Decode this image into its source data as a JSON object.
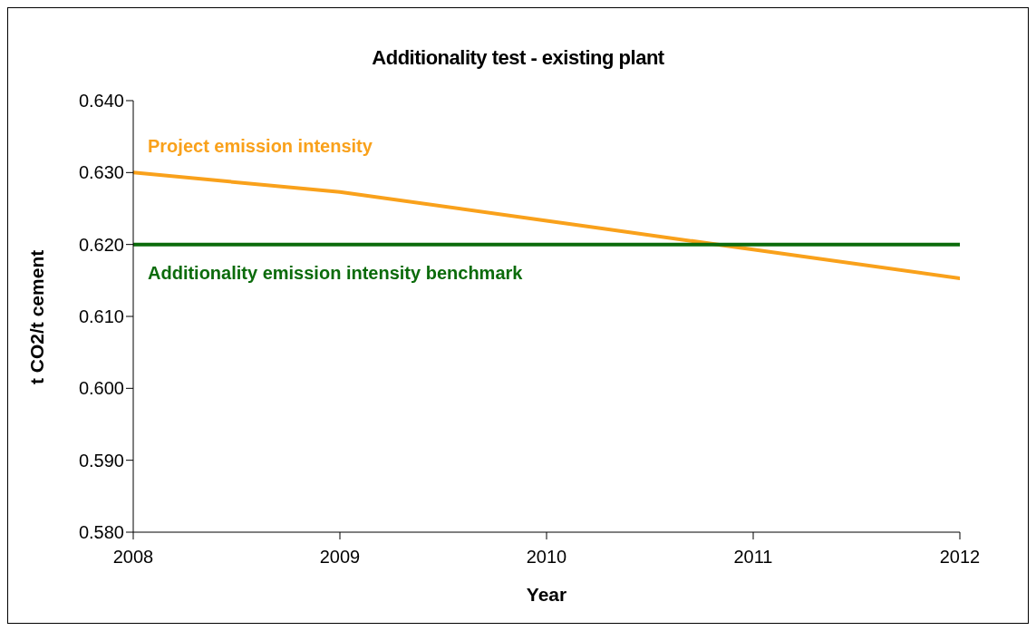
{
  "chart_data": {
    "type": "line",
    "title": "Additionality test - existing plant",
    "xlabel": "Year",
    "ylabel": "t CO2/t cement",
    "x": [
      2008,
      2009,
      2010,
      2011,
      2012
    ],
    "series": [
      {
        "name": "Project emission intensity",
        "color": "#f9a11b",
        "values": [
          0.63,
          0.6273,
          0.6233,
          0.6193,
          0.6153
        ]
      },
      {
        "name": "Additionality emission intensity benchmark",
        "color": "#0b6b0b",
        "values": [
          0.62,
          0.62,
          0.62,
          0.62,
          0.62
        ]
      }
    ],
    "xlim": [
      2008,
      2012
    ],
    "xticks": [
      2008,
      2009,
      2010,
      2011,
      2012
    ],
    "ylim": [
      0.58,
      0.64
    ],
    "yticks": [
      {
        "value": 0.58,
        "label": "0.580"
      },
      {
        "value": 0.59,
        "label": "0.590"
      },
      {
        "value": 0.6,
        "label": "0.600"
      },
      {
        "value": 0.61,
        "label": "0.610"
      },
      {
        "value": 0.62,
        "label": "0.620"
      },
      {
        "value": 0.63,
        "label": "0.630"
      },
      {
        "value": 0.64,
        "label": "0.640"
      }
    ],
    "grid": false,
    "legend": false,
    "marker": "none",
    "line_style": "solid"
  }
}
